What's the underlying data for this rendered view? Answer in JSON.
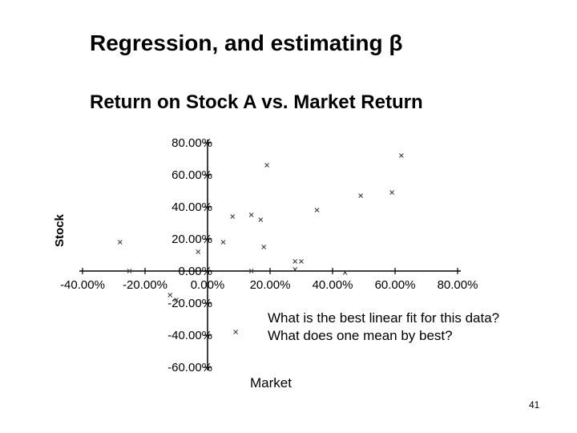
{
  "slide": {
    "title": "Regression, and estimating β",
    "number": "41",
    "note": "What is the best linear fit for this data? What does one mean by best?"
  },
  "chart_data": {
    "type": "scatter",
    "title": "Return on Stock A vs. Market Return",
    "xlabel": "Market",
    "ylabel": "Stock",
    "xlim": [
      -40,
      80
    ],
    "ylim": [
      -60,
      80
    ],
    "x_ticks": [
      "-40.00%",
      "-20.00%",
      "0.00%",
      "20.00%",
      "40.00%",
      "60.00%",
      "80.00%"
    ],
    "y_ticks": [
      "80.00%",
      "60.00%",
      "40.00%",
      "20.00%",
      "0.00%",
      "-20.00%",
      "-40.00%",
      "-60.00%"
    ],
    "grid": false,
    "series": [
      {
        "points": [
          {
            "x": -28,
            "y": 18
          },
          {
            "x": -25,
            "y": 0
          },
          {
            "x": -10,
            "y": -18
          },
          {
            "x": -12,
            "y": -15
          },
          {
            "x": -3,
            "y": 12
          },
          {
            "x": 5,
            "y": 18
          },
          {
            "x": 8,
            "y": 34
          },
          {
            "x": 14,
            "y": 35
          },
          {
            "x": 17,
            "y": 32
          },
          {
            "x": 18,
            "y": 15
          },
          {
            "x": 19,
            "y": 66
          },
          {
            "x": 14,
            "y": 0
          },
          {
            "x": 9,
            "y": -38
          },
          {
            "x": 28,
            "y": 6
          },
          {
            "x": 30,
            "y": 6
          },
          {
            "x": 28,
            "y": 1
          },
          {
            "x": 35,
            "y": 38
          },
          {
            "x": 49,
            "y": 47
          },
          {
            "x": 44,
            "y": -1
          },
          {
            "x": 59,
            "y": 49
          },
          {
            "x": 62,
            "y": 72
          }
        ]
      }
    ]
  }
}
